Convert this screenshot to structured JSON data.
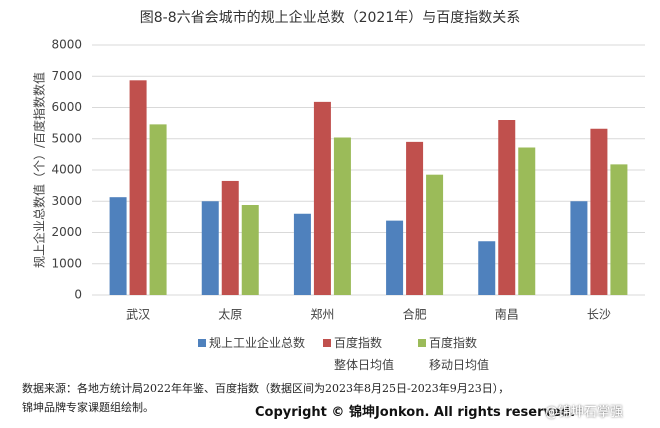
{
  "chart_data": {
    "type": "bar",
    "title": "图8-8六省会城市的规上企业总数（2021年）与百度指数关系",
    "y_label": "规上企业总数值（个）/百度指数数值",
    "categories": [
      "武汉",
      "太原",
      "郑州",
      "合肥",
      "南昌",
      "长沙"
    ],
    "series": [
      {
        "name": "规上工业企业总数",
        "color": "#4f81bd",
        "values": [
          3130,
          3000,
          2600,
          2380,
          1720,
          3000
        ]
      },
      {
        "name": "百度指数\n整体日均值",
        "color": "#c0504d",
        "values": [
          6870,
          3650,
          6180,
          4900,
          5600,
          5320
        ]
      },
      {
        "name": "百度指数\n移动日均值",
        "color": "#9bbb59",
        "values": [
          5460,
          2880,
          5040,
          3850,
          4720,
          4180
        ]
      }
    ],
    "ylim": [
      0,
      8000
    ],
    "yticks": [
      0,
      1000,
      2000,
      3000,
      4000,
      5000,
      6000,
      7000,
      8000
    ],
    "grid": true,
    "source": [
      "数据来源：各地方统计局2022年年鉴、百度指数（数据区间为2023年8月25日-2023年9月23日），",
      "锦坤品牌专家课题组绘制。"
    ],
    "copyright": "Copyright © 锦坤Jonkon. All rights reserved.",
    "watermark": "@锦坤石掌强"
  }
}
